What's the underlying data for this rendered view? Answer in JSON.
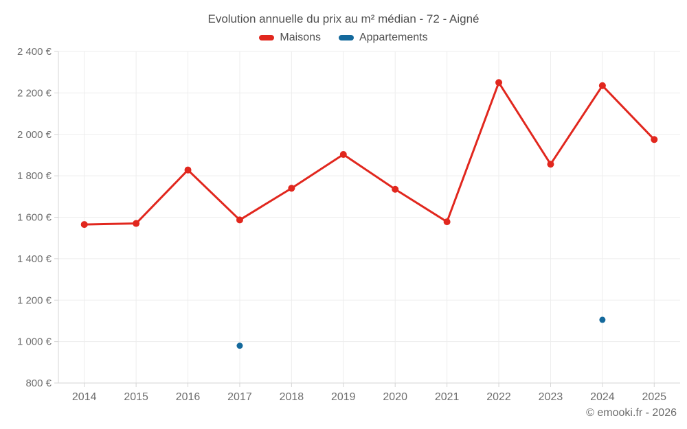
{
  "chart_data": {
    "type": "line",
    "title": "Evolution annuelle du prix au m² médian - 72 - Aigné",
    "categories": [
      "2014",
      "2015",
      "2016",
      "2017",
      "2018",
      "2019",
      "2020",
      "2021",
      "2022",
      "2023",
      "2024",
      "2025"
    ],
    "series": [
      {
        "name": "Maisons",
        "color": "#e1271e",
        "line": true,
        "values": [
          1565,
          1570,
          1828,
          1587,
          1740,
          1903,
          1735,
          1578,
          2250,
          1856,
          2235,
          1975
        ]
      },
      {
        "name": "Appartements",
        "color": "#14699c",
        "line": false,
        "values": [
          null,
          null,
          null,
          980,
          null,
          null,
          null,
          null,
          null,
          null,
          1105,
          null
        ]
      }
    ],
    "ylim": [
      800,
      2400
    ],
    "y_ticks": [
      {
        "value": 800,
        "label": "800 €"
      },
      {
        "value": 1000,
        "label": "1 000 €"
      },
      {
        "value": 1200,
        "label": "1 200 €"
      },
      {
        "value": 1400,
        "label": "1 400 €"
      },
      {
        "value": 1600,
        "label": "1 600 €"
      },
      {
        "value": 1800,
        "label": "1 800 €"
      },
      {
        "value": 2000,
        "label": "2 000 €"
      },
      {
        "value": 2200,
        "label": "2 200 €"
      },
      {
        "value": 2400,
        "label": "2 400 €"
      }
    ],
    "grid": true,
    "legend_position": "top",
    "ylabel": "",
    "xlabel": ""
  },
  "footer": {
    "text": "© emooki.fr - 2026"
  },
  "colors": {
    "background": "#ffffff",
    "grid": "#ededed",
    "axis": "#d4d4d4",
    "title_text": "#505050",
    "legend_text": "#515151",
    "tick_text": "#6e6e6e",
    "footer_text": "#6d6d6d"
  }
}
